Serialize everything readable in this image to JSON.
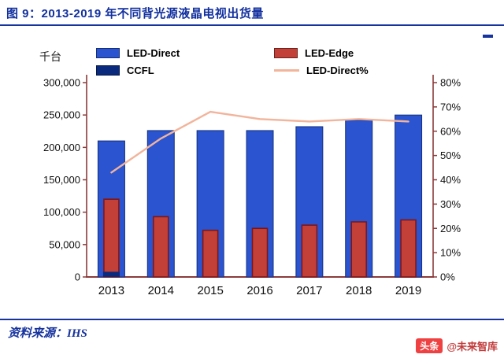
{
  "page": {
    "title": "图 9：2013-2019 年不同背光源液晶电视出货量",
    "source_label": "资料来源：IHS",
    "watermark": {
      "badge": "头条",
      "handle": "@未来智库"
    }
  },
  "colors": {
    "title": "#12309f",
    "accent_rule": "#16339e",
    "axis": "#8c3b3b",
    "tick_text": "#111111",
    "led_direct_border": "#14307d",
    "led_edge_border": "#7e1618"
  },
  "chart_data": {
    "type": "bar",
    "title": "2013-2019 年不同背光源液晶电视出货量",
    "unit_label": "千台",
    "categories": [
      "2013",
      "2014",
      "2015",
      "2016",
      "2017",
      "2018",
      "2019"
    ],
    "series": [
      {
        "name": "LED-Direct",
        "type": "bar",
        "color": "#2b54d0",
        "values": [
          210000,
          226000,
          226000,
          226000,
          232000,
          242000,
          250000
        ]
      },
      {
        "name": "LED-Edge",
        "type": "bar",
        "color": "#c24038",
        "values": [
          120000,
          93000,
          72000,
          75000,
          80000,
          85000,
          88000
        ]
      },
      {
        "name": "CCFL",
        "type": "bar",
        "color": "#0a2a7e",
        "values": [
          8000,
          0,
          0,
          0,
          0,
          0,
          0
        ]
      },
      {
        "name": "LED-Direct%",
        "type": "line",
        "axis": "right",
        "color": "#f2b49b",
        "values": [
          43,
          57,
          68,
          65,
          64,
          65,
          64
        ]
      }
    ],
    "left_axis": {
      "min": 0,
      "max": 300000,
      "ticks": [
        {
          "v": 0,
          "label": "0"
        },
        {
          "v": 50000,
          "label": "50,000"
        },
        {
          "v": 100000,
          "label": "100,000"
        },
        {
          "v": 150000,
          "label": "150,000"
        },
        {
          "v": 200000,
          "label": "200,000"
        },
        {
          "v": 250000,
          "label": "250,000"
        },
        {
          "v": 300000,
          "label": "300,000"
        }
      ]
    },
    "right_axis": {
      "min": 0,
      "max": 80,
      "ticks": [
        {
          "v": 0,
          "label": "0%"
        },
        {
          "v": 10,
          "label": "10%"
        },
        {
          "v": 20,
          "label": "20%"
        },
        {
          "v": 30,
          "label": "30%"
        },
        {
          "v": 40,
          "label": "40%"
        },
        {
          "v": 50,
          "label": "50%"
        },
        {
          "v": 60,
          "label": "60%"
        },
        {
          "v": 70,
          "label": "70%"
        },
        {
          "v": 80,
          "label": "80%"
        }
      ]
    },
    "legend_position": "top",
    "grid": false
  }
}
